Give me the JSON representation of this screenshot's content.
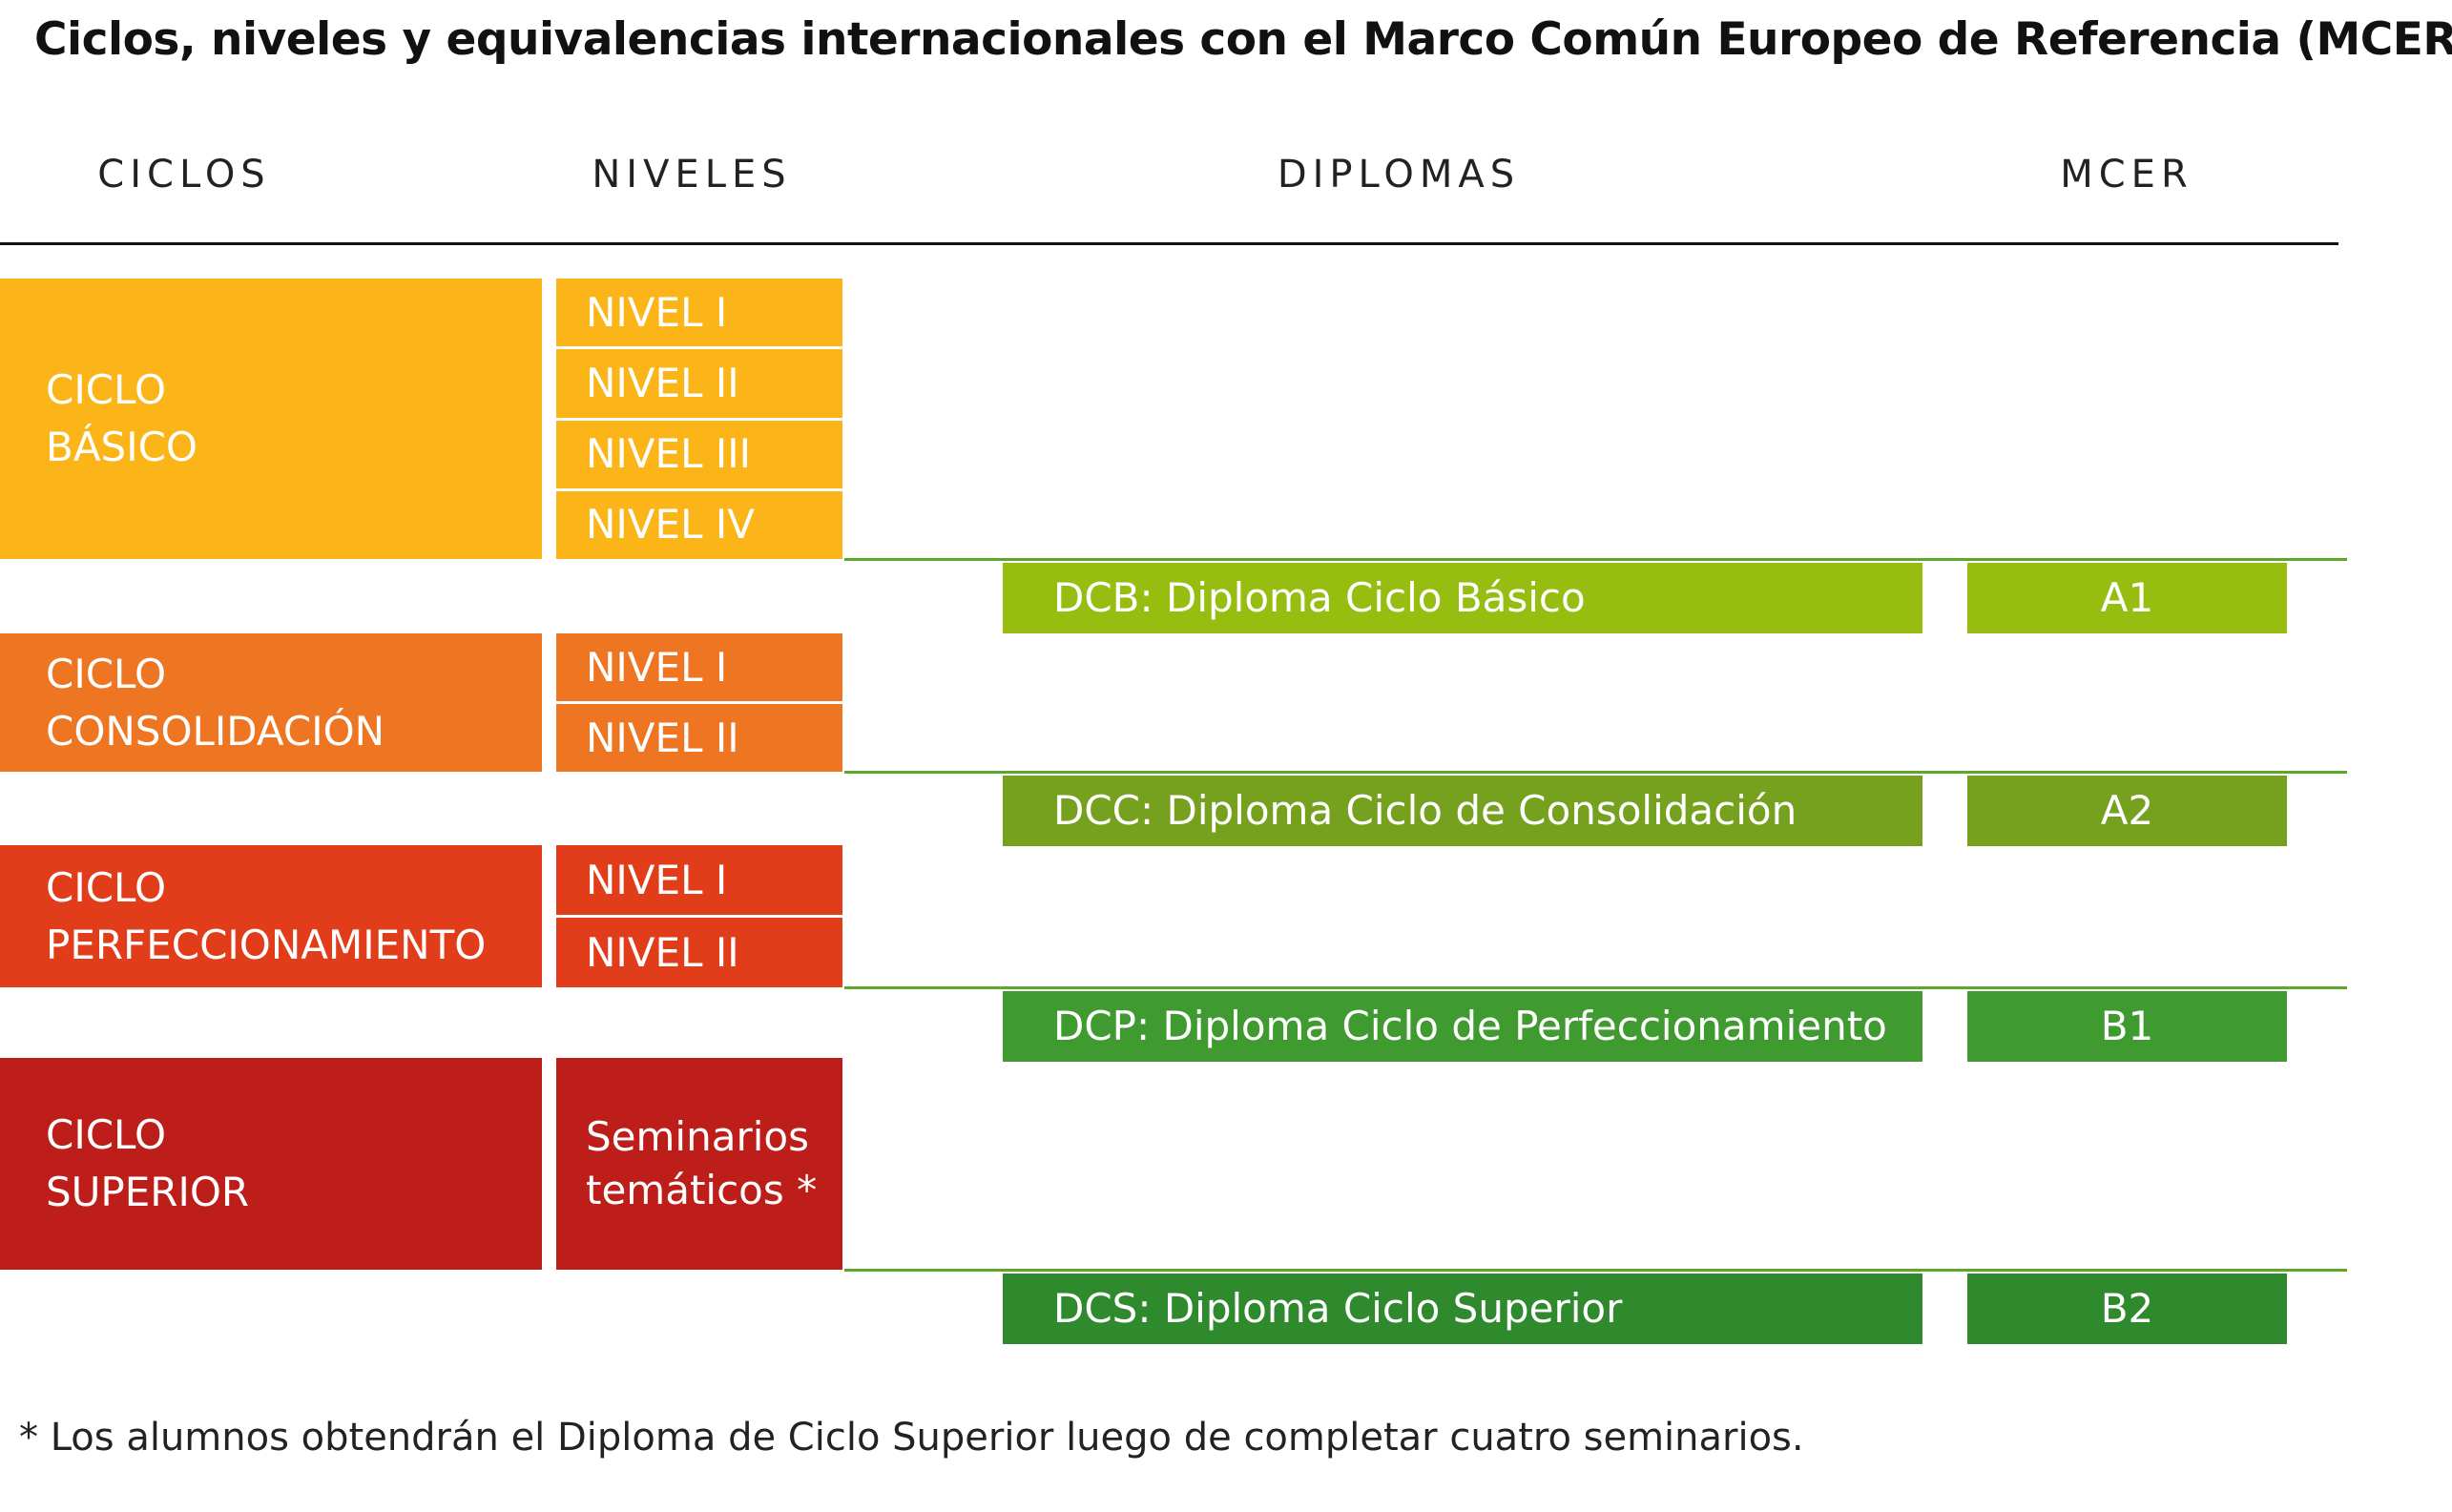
{
  "title": "Ciclos, niveles y equivalencias internacionales con el Marco Común Europeo de Referencia (MCER)",
  "headers": [
    "CICLOS",
    "NIVELES",
    "DIPLOMAS",
    "MCER"
  ],
  "cycles": [
    {
      "name": [
        "CICLO",
        "BÁSICO"
      ],
      "levels": [
        "NIVEL I",
        "NIVEL II",
        "NIVEL III",
        "NIVEL IV"
      ],
      "diploma": "DCB: Diploma Ciclo Básico",
      "mcer": "A1"
    },
    {
      "name": [
        "CICLO",
        "CONSOLIDACIÓN"
      ],
      "levels": [
        "NIVEL I",
        "NIVEL II"
      ],
      "diploma": "DCC: Diploma Ciclo de Consolidación",
      "mcer": "A2"
    },
    {
      "name": [
        "CICLO",
        "PERFECCIONAMIENTO"
      ],
      "levels": [
        "NIVEL I",
        "NIVEL II"
      ],
      "diploma": "DCP: Diploma Ciclo de Perfeccionamiento",
      "mcer": "B1"
    },
    {
      "name": [
        "CICLO",
        "SUPERIOR"
      ],
      "levels": [
        "Seminarios temáticos *"
      ],
      "diploma": "DCS: Diploma Ciclo Superior",
      "mcer": "B2"
    }
  ],
  "footnote": "*  Los alumnos obtendrán el Diploma de Ciclo Superior luego de completar cuatro seminarios."
}
